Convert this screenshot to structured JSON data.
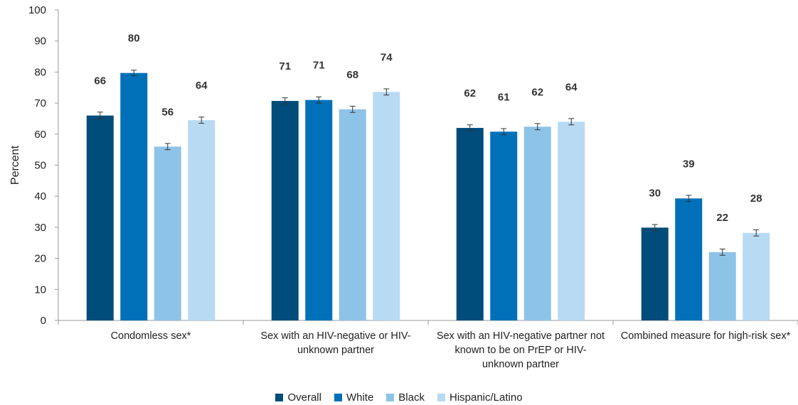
{
  "chart_data": {
    "type": "bar",
    "ylabel": "Percent",
    "ylim": [
      0,
      100
    ],
    "yticks": [
      0,
      10,
      20,
      30,
      40,
      50,
      60,
      70,
      80,
      90,
      100
    ],
    "grid": false,
    "legend_position": "bottom",
    "categories": [
      [
        "Condomless sex*"
      ],
      [
        "Sex with an HIV-negative or HIV-",
        "unknown partner"
      ],
      [
        "Sex with an HIV-negative partner not",
        "known to be on PrEP or HIV-",
        "unknown partner"
      ],
      [
        "Combined measure for high-risk sex*"
      ]
    ],
    "series": [
      {
        "name": "Overall",
        "color": "#004c7a",
        "values": [
          66,
          70.7,
          62,
          29.9
        ],
        "labels": [
          "66",
          "71",
          "62",
          "30"
        ],
        "err": [
          1.1,
          1.0,
          1.0,
          1.0
        ]
      },
      {
        "name": "White",
        "color": "#0070b8",
        "values": [
          79.7,
          71,
          60.8,
          39.3
        ],
        "labels": [
          "80",
          "71",
          "61",
          "39"
        ],
        "err": [
          0.9,
          1.0,
          1.0,
          1.0
        ]
      },
      {
        "name": "Black",
        "color": "#8ec3e8",
        "values": [
          56,
          68,
          62.4,
          22
        ],
        "labels": [
          "56",
          "68",
          "62",
          "22"
        ],
        "err": [
          1.0,
          1.0,
          1.0,
          1.0
        ]
      },
      {
        "name": "Hispanic/Latino",
        "color": "#b8daf2",
        "values": [
          64.5,
          73.6,
          64,
          28.2
        ],
        "labels": [
          "64",
          "74",
          "64",
          "28"
        ],
        "err": [
          1.0,
          1.0,
          1.0,
          1.0
        ]
      }
    ]
  }
}
